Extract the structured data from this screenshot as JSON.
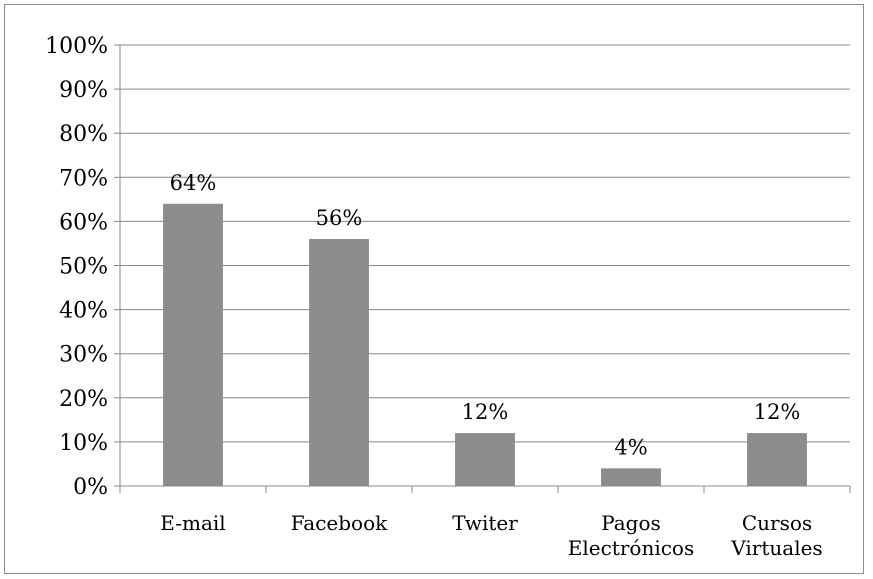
{
  "chart_data": {
    "type": "bar",
    "categories": [
      "E-mail",
      "Facebook",
      "Twiter",
      "Pagos Electrónicos",
      "Cursos Virtuales"
    ],
    "category_lines": [
      [
        "E-mail"
      ],
      [
        "Facebook"
      ],
      [
        "Twiter"
      ],
      [
        "Pagos",
        "Electrónicos"
      ],
      [
        "Cursos",
        "Virtuales"
      ]
    ],
    "values": [
      64,
      56,
      12,
      4,
      12
    ],
    "data_labels": [
      "64%",
      "56%",
      "12%",
      "4%",
      "12%"
    ],
    "title": "",
    "xlabel": "",
    "ylabel": "",
    "ylim": [
      0,
      100
    ],
    "yticks": [
      0,
      10,
      20,
      30,
      40,
      50,
      60,
      70,
      80,
      90,
      100
    ],
    "ytick_labels": [
      "0%",
      "10%",
      "20%",
      "30%",
      "40%",
      "50%",
      "60%",
      "70%",
      "80%",
      "90%",
      "100%"
    ],
    "grid": true,
    "legend": "none",
    "colors": {
      "bar": "#8c8c8c",
      "grid": "#888888",
      "axis": "#888888",
      "frame": "#8c8c8c"
    }
  }
}
